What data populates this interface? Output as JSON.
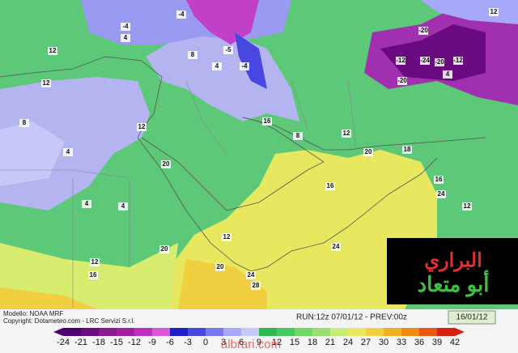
{
  "map": {
    "labels": [
      "12",
      "12",
      "8",
      "4",
      "4",
      "4",
      "-4",
      "-4",
      "4",
      "-5",
      "-4",
      "4",
      "8",
      "12",
      "20",
      "16",
      "8",
      "12",
      "16",
      "20",
      "18",
      "24",
      "20",
      "12",
      "16",
      "12",
      "24",
      "24",
      "20",
      "28",
      "-20",
      "-12",
      "-24",
      "-20",
      "-12",
      "-20",
      "4",
      "12",
      "16",
      "12"
    ]
  },
  "info": {
    "model": "Modello: NOAA MRF",
    "copyright": "Copyright: Dotameteo.com - LRC Servizi S.r.l.",
    "run": "RUN:12z 07/01/12 - PREV:00z",
    "valid": "16/01/12"
  },
  "colorbar": {
    "ticks": [
      -24,
      -21,
      -18,
      -15,
      -12,
      -9,
      -6,
      -3,
      0,
      3,
      6,
      9,
      12,
      15,
      18,
      21,
      24,
      27,
      30,
      33,
      36,
      39,
      42
    ],
    "colors": [
      "#4b0070",
      "#6a0a80",
      "#8a1890",
      "#a020a0",
      "#c030c0",
      "#d858d8",
      "#2020c8",
      "#4848e0",
      "#7878f0",
      "#a8a8f8",
      "#c8c8f8",
      "#30b850",
      "#48c860",
      "#70d868",
      "#98e070",
      "#c8ec78",
      "#e8e860",
      "#f0d040",
      "#f0b020",
      "#f08a10",
      "#e85810",
      "#d82010"
    ]
  },
  "logo": {
    "line1": "البراري",
    "line2": "أبو متعاد"
  },
  "watermark": "albrari.com"
}
